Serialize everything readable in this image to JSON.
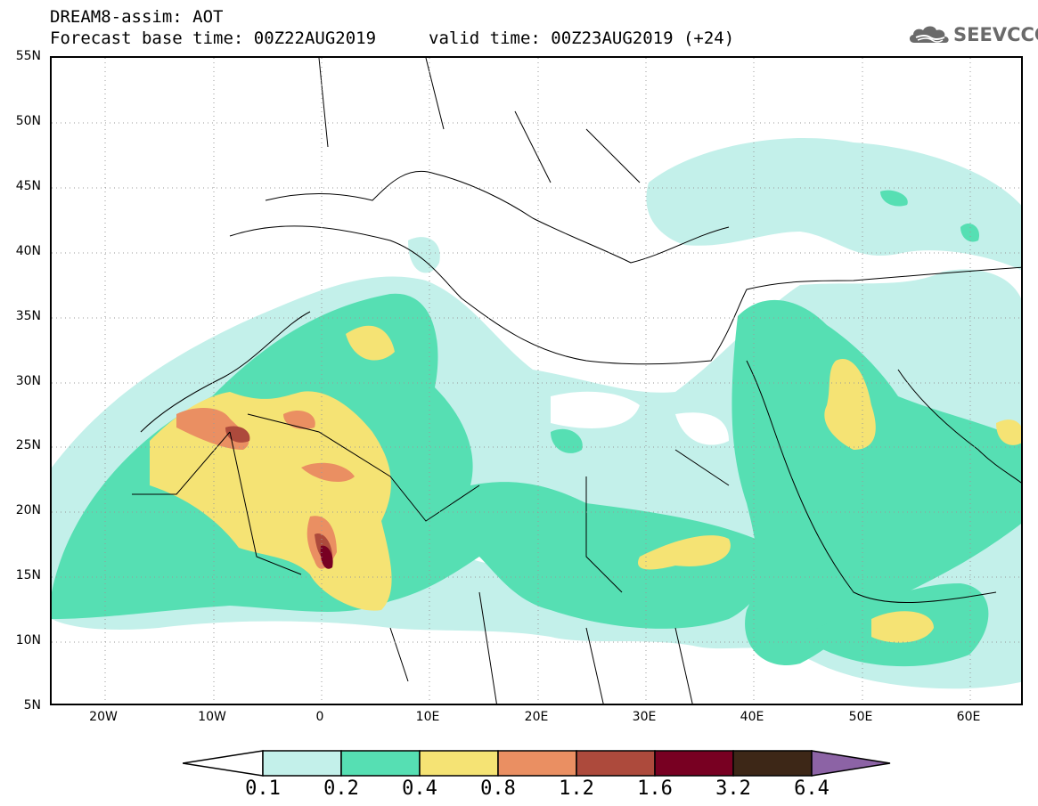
{
  "header": {
    "title_line1": "DREAM8-assim: AOT",
    "base_label": "Forecast base time: 00Z22AUG2019",
    "valid_label": "valid time: 00Z23AUG2019 (+24)",
    "logo_text": "SEEVCCC",
    "logo_icon": "cloud-icon"
  },
  "map": {
    "lat_labels": [
      "55N",
      "50N",
      "45N",
      "40N",
      "35N",
      "30N",
      "25N",
      "20N",
      "15N",
      "10N",
      "5N"
    ],
    "lon_labels": [
      "20W",
      "10W",
      "0",
      "10E",
      "20E",
      "30E",
      "40E",
      "50E",
      "60E"
    ],
    "lat_range": [
      5,
      55
    ],
    "lon_range": [
      -25,
      65
    ],
    "gridlines": "dotted"
  },
  "legend": {
    "labels": [
      "0.1",
      "0.2",
      "0.4",
      "0.8",
      "1.2",
      "1.6",
      "3.2",
      "6.4"
    ],
    "colors": [
      "#ffffff",
      "#c3f0ea",
      "#56dfb3",
      "#f5e374",
      "#ea8f62",
      "#ad4a3c",
      "#780022",
      "#3d2717",
      "#8c63a5"
    ]
  }
}
